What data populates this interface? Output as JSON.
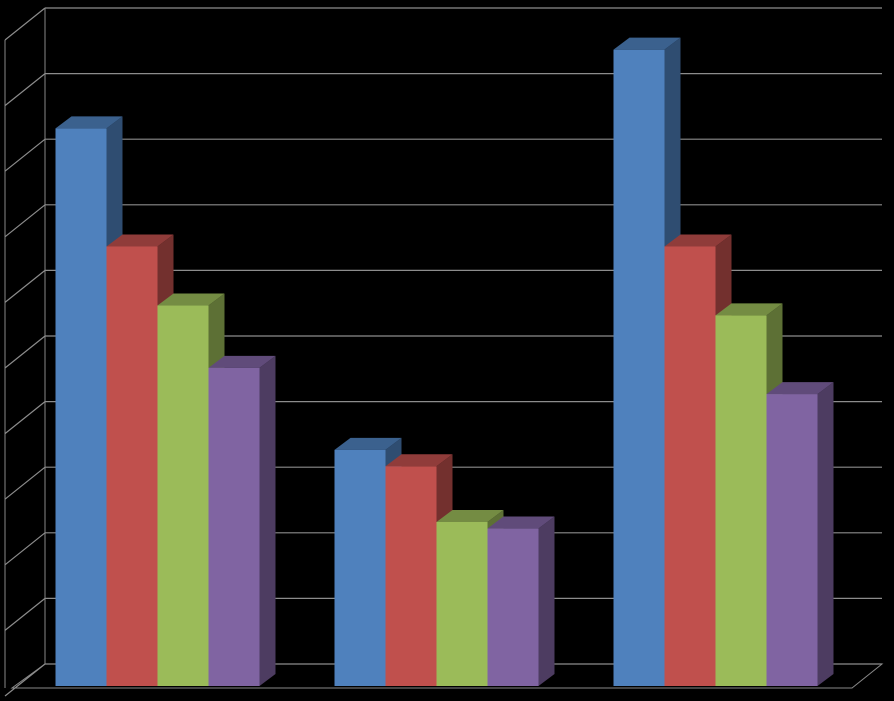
{
  "chart_data": {
    "type": "bar3d",
    "categories": [
      null,
      null,
      null
    ],
    "series": [
      {
        "color": "#4f81bd",
        "values": [
          8.5,
          3.6,
          9.7
        ]
      },
      {
        "color": "#c0504d",
        "values": [
          6.7,
          3.35,
          6.7
        ]
      },
      {
        "color": "#9bbb59",
        "values": [
          5.8,
          2.5,
          5.65
        ]
      },
      {
        "color": "#8064a2",
        "values": [
          4.85,
          2.4,
          4.45
        ]
      }
    ],
    "ylim": [
      0,
      10
    ],
    "yticks": [
      0,
      1,
      2,
      3,
      4,
      5,
      6,
      7,
      8,
      9,
      10
    ],
    "grid": true
  }
}
